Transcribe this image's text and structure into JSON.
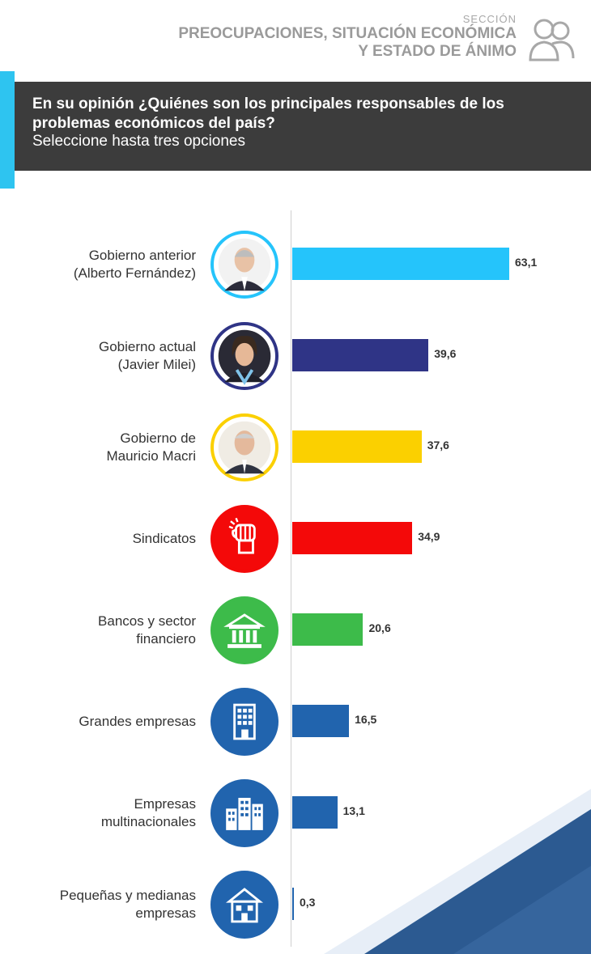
{
  "header": {
    "kicker": "SECCIÓN",
    "title_line1": "PREOCUPACIONES, SITUACIÓN ECONÓMICA",
    "title_line2": "Y ESTADO DE ÁNIMO",
    "icon": "people-icon"
  },
  "question": {
    "text": "En su opinión ¿Quiénes son los principales responsables de los problemas económicos del país?",
    "subtitle": "Seleccione hasta tres opciones"
  },
  "colors": {
    "accent": "#2ec4f0",
    "dark": "#3c3c3c"
  },
  "chart_data": {
    "type": "bar",
    "orientation": "horizontal",
    "categories": [
      "Gobierno anterior (Alberto Fernández)",
      "Gobierno actual (Javier Milei)",
      "Gobierno de Mauricio Macri",
      "Sindicatos",
      "Bancos y sector financiero",
      "Grandes empresas",
      "Empresas multinacionales",
      "Pequeñas y medianas empresas"
    ],
    "values": [
      63.1,
      39.6,
      37.6,
      34.9,
      20.6,
      16.5,
      13.1,
      0.3
    ],
    "value_labels": [
      "63,1",
      "39,6",
      "37,6",
      "34,9",
      "20,6",
      "16,5",
      "13,1",
      "0,3"
    ],
    "xlim": [
      0,
      63.1
    ],
    "grid": false,
    "legend": "none",
    "bars": [
      {
        "label_lines": [
          "Gobierno anterior",
          "(Alberto Fernández)"
        ],
        "color": "#25c4fb",
        "ring": "#25c4fb",
        "icon": "alberto-fernandez-portrait-icon"
      },
      {
        "label_lines": [
          "Gobierno actual",
          "(Javier Milei)"
        ],
        "color": "#2f3486",
        "ring": "#2f3486",
        "icon": "javier-milei-portrait-icon"
      },
      {
        "label_lines": [
          "Gobierno de",
          "Mauricio Macri"
        ],
        "color": "#fbd000",
        "ring": "#fbd000",
        "icon": "mauricio-macri-portrait-icon"
      },
      {
        "label_lines": [
          "Sindicatos"
        ],
        "color": "#f40909",
        "ring": "#f40909",
        "icon": "raised-fist-icon"
      },
      {
        "label_lines": [
          "Bancos y sector",
          "financiero"
        ],
        "color": "#3dbb4a",
        "ring": "#3dbb4a",
        "icon": "bank-icon"
      },
      {
        "label_lines": [
          "Grandes empresas"
        ],
        "color": "#2164ae",
        "ring": "#2164ae",
        "icon": "office-building-icon"
      },
      {
        "label_lines": [
          "Empresas",
          "multinacionales"
        ],
        "color": "#2164ae",
        "ring": "#2164ae",
        "icon": "city-buildings-icon"
      },
      {
        "label_lines": [
          "Pequeñas y medianas",
          "empresas"
        ],
        "color": "#2164ae",
        "ring": "#2164ae",
        "icon": "small-building-icon"
      }
    ]
  }
}
